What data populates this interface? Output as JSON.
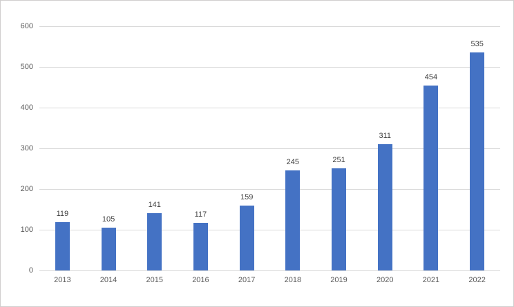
{
  "chart": {
    "background_color": "#ffffff",
    "border_color": "#d0cece",
    "bar_color": "#4472c4",
    "gridline_color": "#d9d9d9",
    "axis_tick_color": "#595959",
    "value_label_color": "#404040"
  },
  "chart_data": {
    "type": "bar",
    "title": "",
    "xlabel": "",
    "ylabel": "",
    "categories": [
      "2013",
      "2014",
      "2015",
      "2016",
      "2017",
      "2018",
      "2019",
      "2020",
      "2021",
      "2022"
    ],
    "values": [
      119,
      105,
      141,
      117,
      159,
      245,
      251,
      311,
      454,
      535
    ],
    "value_labels": [
      "119",
      "105",
      "141",
      "117",
      "159",
      "245",
      "251",
      "311",
      "454",
      "535"
    ],
    "y_ticks": [
      0,
      100,
      200,
      300,
      400,
      500,
      600
    ],
    "y_tick_labels": [
      "0",
      "100",
      "200",
      "300",
      "400",
      "500",
      "600"
    ],
    "ylim": [
      0,
      600
    ],
    "grid": true,
    "legend": false,
    "data_labels_visible": true
  }
}
